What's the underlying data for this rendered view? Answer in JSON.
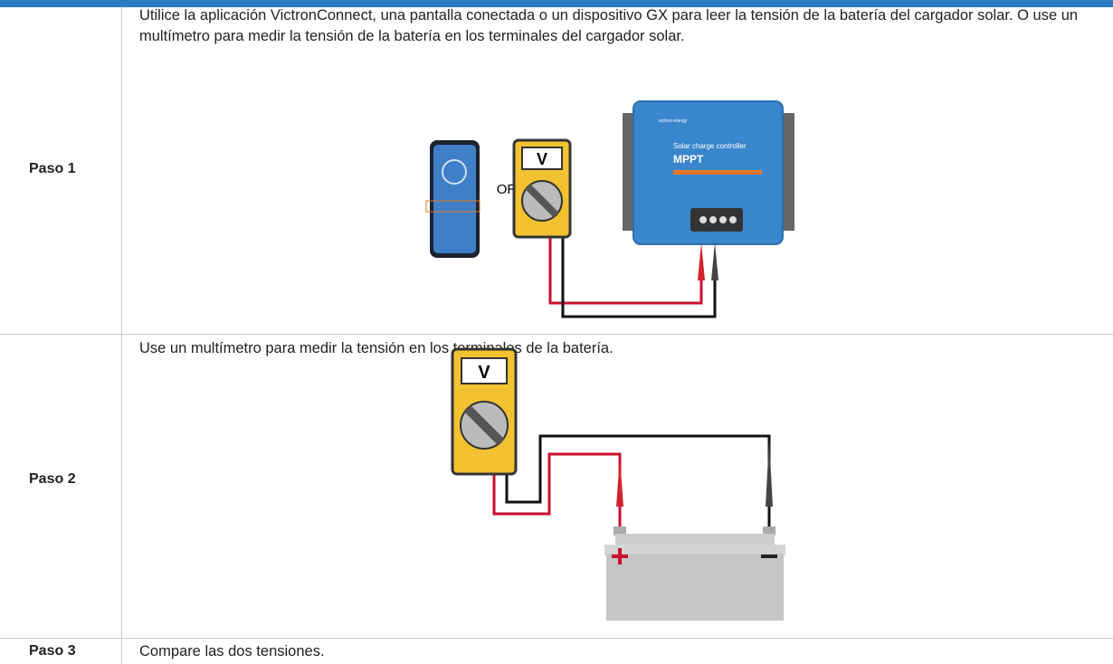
{
  "table": {
    "rows": [
      {
        "step": "Paso 1",
        "text": "Utilice la aplicación VictronConnect, una pantalla conectada o un dispositivo GX para leer la tensión de la batería del cargador solar. O use un multímetro para medir la tensión de la batería en los terminales del cargador solar.",
        "illustration": {
          "or": "OR",
          "meter": "V",
          "brand": "victron energy",
          "product": "Solar charge controller",
          "model": "MPPT"
        }
      },
      {
        "step": "Paso 2",
        "text": "Use un multímetro para medir la tensión en los terminales de la batería.",
        "illustration": {
          "meter": "V"
        }
      },
      {
        "step": "Paso 3",
        "text": "Compare las dos tensiones."
      }
    ]
  }
}
